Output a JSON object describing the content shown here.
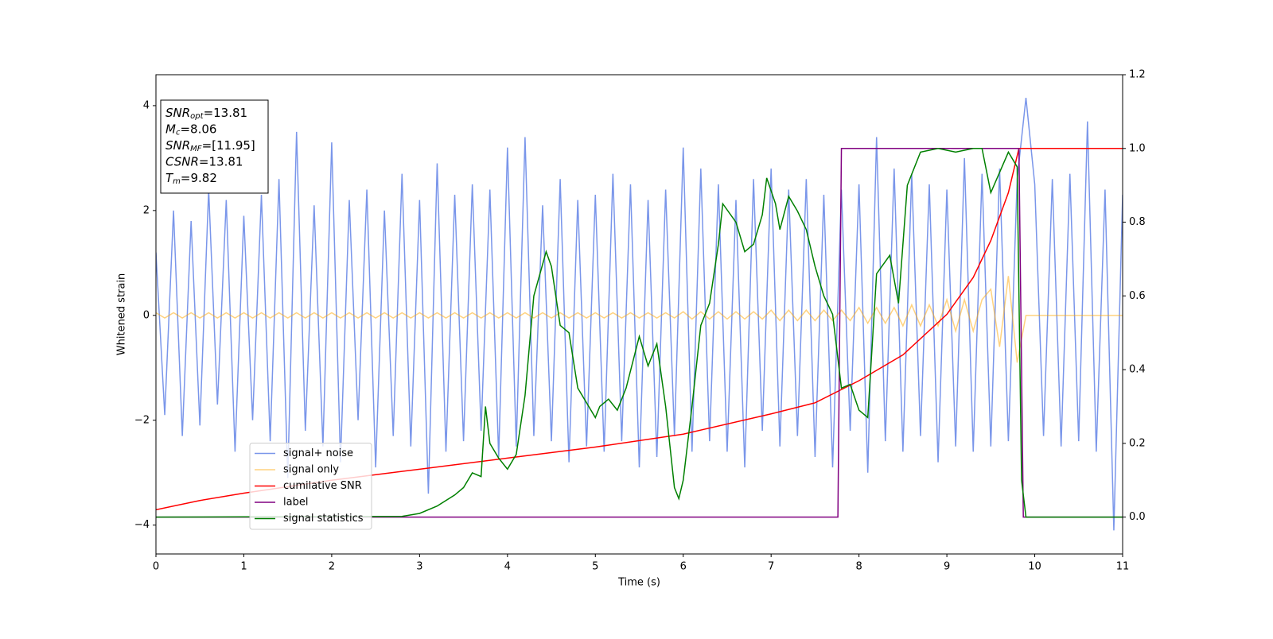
{
  "chart_data": {
    "type": "line",
    "xlabel": "Time (s)",
    "ylabel": "Whitened strain",
    "xlim": [
      0,
      11
    ],
    "xticks": [
      0,
      1,
      2,
      3,
      4,
      5,
      6,
      7,
      8,
      9,
      10,
      11
    ],
    "ylim": [
      -4.55,
      4.59
    ],
    "yticks": [
      {
        "value": -4,
        "label": "−4"
      },
      {
        "value": -2,
        "label": "−2"
      },
      0,
      2,
      4
    ],
    "y2lim": [
      -0.1,
      1.2
    ],
    "y2ticks": [
      {
        "value": 0,
        "label": "0.0"
      },
      0.2,
      0.4,
      0.6,
      0.8,
      {
        "value": 1,
        "label": "1.0"
      },
      1.2
    ],
    "legend": "lower left",
    "annotations": [
      {
        "base": "SNR",
        "sub": "opt",
        "rest": "=13.81"
      },
      {
        "base": "M",
        "sub": "c",
        "rest": "=8.06"
      },
      {
        "base": "SNR",
        "sub": "MF",
        "rest": "=[11.95]"
      },
      {
        "base": "CSNR",
        "rest": "=13.81"
      },
      {
        "base": "T",
        "sub": "m",
        "rest": "=9.82"
      }
    ],
    "series": [
      {
        "name": "signal+ noise",
        "color": "#4169e1",
        "alpha": 0.7,
        "x": [
          0,
          0.1,
          0.2,
          0.3,
          0.4,
          0.5,
          0.6,
          0.7,
          0.8,
          0.9,
          1,
          1.1,
          1.2,
          1.3,
          1.4,
          1.5,
          1.6,
          1.7,
          1.8,
          1.9,
          2,
          2.1,
          2.2,
          2.3,
          2.4,
          2.5,
          2.6,
          2.7,
          2.8,
          2.9,
          3,
          3.1,
          3.2,
          3.3,
          3.4,
          3.5,
          3.6,
          3.7,
          3.8,
          3.9,
          4,
          4.1,
          4.2,
          4.3,
          4.4,
          4.5,
          4.6,
          4.7,
          4.8,
          4.9,
          5,
          5.1,
          5.2,
          5.3,
          5.4,
          5.5,
          5.6,
          5.7,
          5.8,
          5.9,
          6,
          6.1,
          6.2,
          6.3,
          6.4,
          6.5,
          6.6,
          6.7,
          6.8,
          6.9,
          7,
          7.1,
          7.2,
          7.3,
          7.4,
          7.5,
          7.6,
          7.7,
          7.8,
          7.9,
          8,
          8.1,
          8.2,
          8.3,
          8.4,
          8.5,
          8.6,
          8.7,
          8.8,
          8.9,
          9,
          9.1,
          9.2,
          9.3,
          9.4,
          9.5,
          9.6,
          9.7,
          9.8,
          9.9,
          10,
          10.1,
          10.2,
          10.3,
          10.4,
          10.5,
          10.6,
          10.7,
          10.8,
          10.9,
          11
        ],
        "values": [
          1.2,
          -1.9,
          2.0,
          -2.3,
          1.8,
          -2.1,
          2.4,
          -1.7,
          2.2,
          -2.6,
          1.9,
          -2.0,
          2.3,
          -2.4,
          2.6,
          -3.1,
          3.5,
          -2.2,
          2.1,
          -2.5,
          3.3,
          -2.8,
          2.2,
          -2.0,
          2.4,
          -2.9,
          2.0,
          -2.3,
          2.7,
          -2.5,
          2.2,
          -3.4,
          2.9,
          -2.6,
          2.3,
          -2.4,
          2.5,
          -2.2,
          2.4,
          -2.7,
          3.2,
          -2.5,
          3.4,
          -2.3,
          2.1,
          -2.4,
          2.6,
          -2.8,
          2.2,
          -2.5,
          2.3,
          -2.6,
          2.7,
          -2.4,
          2.5,
          -2.9,
          2.2,
          -2.7,
          2.4,
          -2.3,
          3.2,
          -2.6,
          2.8,
          -2.4,
          2.5,
          -2.6,
          2.2,
          -2.9,
          2.6,
          -2.2,
          2.8,
          -2.5,
          2.4,
          -2.3,
          2.6,
          -2.7,
          2.3,
          -2.9,
          2.4,
          -2.2,
          2.5,
          -3.0,
          3.4,
          -2.4,
          2.8,
          -2.6,
          2.7,
          -2.3,
          2.5,
          -2.8,
          2.4,
          -2.5,
          3.0,
          -2.6,
          2.7,
          -2.5,
          2.8,
          -2.4,
          2.6,
          4.15,
          2.5,
          -2.3,
          2.6,
          -2.5,
          2.7,
          -2.4,
          3.7,
          -2.6,
          2.4,
          -4.1,
          2.3
        ]
      },
      {
        "name": "signal only",
        "color": "#ffa500",
        "alpha": 0.5,
        "x": [
          0,
          0.1,
          0.2,
          0.3,
          0.4,
          0.5,
          0.6,
          0.7,
          0.8,
          0.9,
          1,
          1.1,
          1.2,
          1.3,
          1.4,
          1.5,
          1.6,
          1.7,
          1.8,
          1.9,
          2,
          2.1,
          2.2,
          2.3,
          2.4,
          2.5,
          2.6,
          2.7,
          2.8,
          2.9,
          3,
          3.1,
          3.2,
          3.3,
          3.4,
          3.5,
          3.6,
          3.7,
          3.8,
          3.9,
          4,
          4.1,
          4.2,
          4.3,
          4.4,
          4.5,
          4.6,
          4.7,
          4.8,
          4.9,
          5,
          5.1,
          5.2,
          5.3,
          5.4,
          5.5,
          5.6,
          5.7,
          5.8,
          5.9,
          6,
          6.1,
          6.2,
          6.3,
          6.4,
          6.5,
          6.6,
          6.7,
          6.8,
          6.9,
          7,
          7.1,
          7.2,
          7.3,
          7.4,
          7.5,
          7.6,
          7.7,
          7.8,
          7.9,
          8,
          8.1,
          8.2,
          8.3,
          8.4,
          8.5,
          8.6,
          8.7,
          8.8,
          8.9,
          9,
          9.1,
          9.2,
          9.3,
          9.4,
          9.5,
          9.6,
          9.7,
          9.8,
          9.9,
          10,
          10.1,
          10.2,
          10.3,
          10.4,
          10.5,
          10.6,
          10.7,
          10.8,
          10.9,
          11
        ],
        "values": [
          0.05,
          -0.05,
          0.05,
          -0.05,
          0.05,
          -0.05,
          0.05,
          -0.05,
          0.05,
          -0.05,
          0.05,
          -0.05,
          0.05,
          -0.05,
          0.05,
          -0.05,
          0.05,
          -0.05,
          0.05,
          -0.05,
          0.05,
          -0.05,
          0.05,
          -0.05,
          0.05,
          -0.05,
          0.05,
          -0.05,
          0.05,
          -0.05,
          0.05,
          -0.05,
          0.05,
          -0.05,
          0.05,
          -0.05,
          0.05,
          -0.05,
          0.05,
          -0.05,
          0.05,
          -0.05,
          0.05,
          -0.05,
          0.05,
          -0.05,
          0.05,
          -0.05,
          0.05,
          -0.05,
          0.05,
          -0.05,
          0.05,
          -0.05,
          0.05,
          -0.05,
          0.05,
          -0.05,
          0.05,
          -0.05,
          0.07,
          -0.07,
          0.07,
          -0.07,
          0.07,
          -0.07,
          0.07,
          -0.07,
          0.07,
          -0.07,
          0.1,
          -0.1,
          0.1,
          -0.1,
          0.1,
          -0.1,
          0.1,
          -0.1,
          0.1,
          -0.1,
          0.15,
          -0.15,
          0.15,
          -0.15,
          0.15,
          -0.2,
          0.2,
          -0.2,
          0.2,
          -0.2,
          0.3,
          -0.3,
          0.3,
          -0.3,
          0.3,
          0.5,
          -0.6,
          0.75,
          -0.9,
          0,
          0,
          0,
          0,
          0,
          0,
          0,
          0,
          0,
          0,
          0,
          0
        ]
      },
      {
        "name": "cumilative SNR",
        "color": "#ff0000",
        "axis": "y2",
        "x": [
          0,
          0.5,
          1,
          2,
          3,
          4,
          5,
          6,
          7,
          7.5,
          8,
          8.5,
          9,
          9.3,
          9.5,
          9.7,
          9.82,
          11
        ],
        "values": [
          0.02,
          0.045,
          0.065,
          0.1,
          0.13,
          0.16,
          0.19,
          0.225,
          0.28,
          0.31,
          0.37,
          0.44,
          0.55,
          0.65,
          0.75,
          0.88,
          1.0,
          1.0
        ]
      },
      {
        "name": "label",
        "color": "#800080",
        "axis": "y2",
        "x": [
          0,
          7.76,
          7.8,
          9.82,
          9.87,
          11
        ],
        "values": [
          0,
          0,
          1,
          1,
          0,
          0
        ]
      },
      {
        "name": "signal statistics",
        "color": "#008000",
        "axis": "y2",
        "x": [
          0,
          2.8,
          3.0,
          3.2,
          3.4,
          3.5,
          3.6,
          3.7,
          3.75,
          3.8,
          3.9,
          4.0,
          4.1,
          4.2,
          4.3,
          4.44,
          4.5,
          4.6,
          4.7,
          4.8,
          4.9,
          5.0,
          5.05,
          5.15,
          5.25,
          5.35,
          5.5,
          5.6,
          5.7,
          5.8,
          5.9,
          5.95,
          6.0,
          6.1,
          6.2,
          6.3,
          6.4,
          6.45,
          6.6,
          6.7,
          6.8,
          6.9,
          6.95,
          7.05,
          7.1,
          7.2,
          7.3,
          7.4,
          7.5,
          7.6,
          7.7,
          7.8,
          7.9,
          8.0,
          8.1,
          8.2,
          8.35,
          8.45,
          8.55,
          8.7,
          8.9,
          9.1,
          9.3,
          9.4,
          9.5,
          9.7,
          9.8,
          9.85,
          9.9,
          11
        ],
        "values": [
          0,
          0.002,
          0.01,
          0.03,
          0.06,
          0.08,
          0.12,
          0.11,
          0.3,
          0.2,
          0.16,
          0.13,
          0.17,
          0.33,
          0.6,
          0.72,
          0.68,
          0.52,
          0.5,
          0.35,
          0.31,
          0.27,
          0.3,
          0.32,
          0.29,
          0.35,
          0.49,
          0.41,
          0.47,
          0.3,
          0.08,
          0.05,
          0.1,
          0.3,
          0.52,
          0.58,
          0.74,
          0.85,
          0.8,
          0.72,
          0.74,
          0.82,
          0.92,
          0.85,
          0.78,
          0.87,
          0.83,
          0.78,
          0.68,
          0.6,
          0.55,
          0.35,
          0.36,
          0.29,
          0.27,
          0.66,
          0.71,
          0.58,
          0.9,
          0.99,
          1.0,
          0.99,
          1.0,
          1.0,
          0.88,
          0.99,
          0.95,
          0.1,
          0.0,
          0
        ]
      }
    ]
  }
}
